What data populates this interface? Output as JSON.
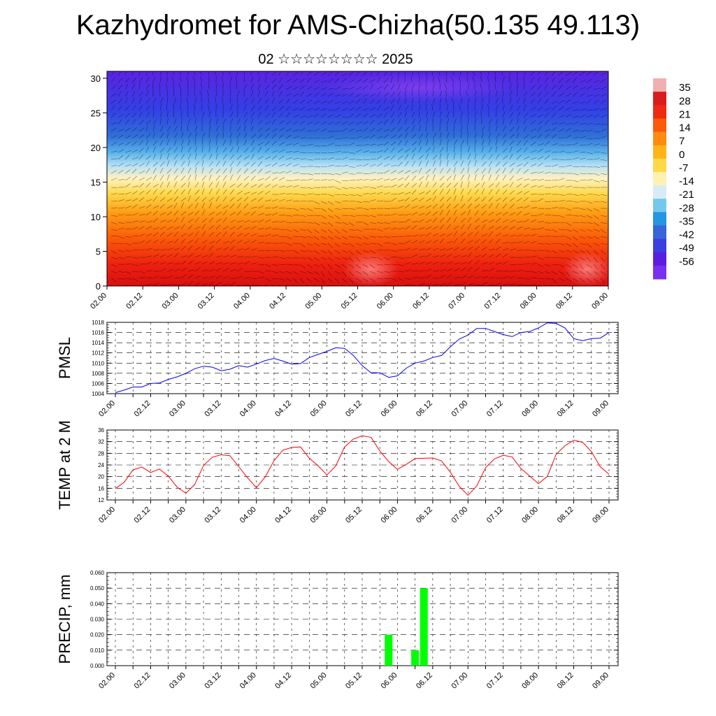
{
  "title": "Kazhydromet for AMS-Chizha(50.135 49.113)",
  "subtitle": "02 ☆☆☆☆☆☆☆☆ 2025",
  "time_ticks": [
    "02.00",
    "02.12",
    "03.00",
    "03.12",
    "04.00",
    "04.12",
    "05.00",
    "05.12",
    "06.00",
    "06.12",
    "07.00",
    "07.12",
    "08.00",
    "08.12",
    "09.00"
  ],
  "colorbar": {
    "labels": [
      "35",
      "28",
      "21",
      "14",
      "7",
      "0",
      "-7",
      "-14",
      "-21",
      "-28",
      "-35",
      "-42",
      "-49",
      "-56"
    ],
    "colors": [
      "#f0b0b0",
      "#d91c1c",
      "#ee2a10",
      "#fb5a08",
      "#ff8a10",
      "#ffb418",
      "#ffd84a",
      "#fff2b0",
      "#d8ecf8",
      "#74c8ee",
      "#2496e2",
      "#3a64d8",
      "#3a40e0",
      "#5a1ee0",
      "#7a30f0"
    ]
  },
  "chart_data": [
    {
      "type": "heatmap",
      "name": "cross-section",
      "x": [
        "02.00",
        "02.12",
        "03.00",
        "03.12",
        "04.00",
        "04.12",
        "05.00",
        "05.12",
        "06.00",
        "06.12",
        "07.00",
        "07.12",
        "08.00",
        "08.12",
        "09.00"
      ],
      "yticks": [
        "0",
        "5",
        "10",
        "15",
        "20",
        "25",
        "30"
      ],
      "ylim": [
        0,
        31
      ],
      "value_range": [
        -56,
        35
      ],
      "note": "temperature shading with wind barbs"
    },
    {
      "type": "line",
      "ylabel": "PMSL",
      "yticks": [
        "1004",
        "1006",
        "1008",
        "1010",
        "1012",
        "1014",
        "1016",
        "1018"
      ],
      "ylim": [
        1004,
        1018
      ],
      "color": "#0000ff",
      "x": [
        "02.00",
        "02.03",
        "02.06",
        "02.09",
        "02.12",
        "02.15",
        "02.18",
        "02.21",
        "03.00",
        "03.03",
        "03.06",
        "03.09",
        "03.12",
        "03.15",
        "03.18",
        "03.21",
        "04.00",
        "04.03",
        "04.06",
        "04.09",
        "04.12",
        "04.15",
        "04.18",
        "04.21",
        "05.00",
        "05.03",
        "05.06",
        "05.09",
        "05.12",
        "05.15",
        "05.18",
        "05.21",
        "06.00",
        "06.03",
        "06.06",
        "06.09",
        "06.12",
        "06.15",
        "06.18",
        "06.21",
        "07.00",
        "07.03",
        "07.06",
        "07.09",
        "07.12",
        "07.15",
        "07.18",
        "07.21",
        "08.00",
        "08.03",
        "08.06",
        "08.09",
        "08.12",
        "08.15",
        "08.18",
        "08.21",
        "09.00"
      ],
      "values": [
        1004.2,
        1004.7,
        1005.3,
        1005.3,
        1006.0,
        1006.1,
        1006.8,
        1007.3,
        1008.0,
        1008.9,
        1009.4,
        1009.2,
        1008.5,
        1008.8,
        1009.5,
        1009.2,
        1009.8,
        1010.5,
        1010.9,
        1010.4,
        1009.8,
        1009.9,
        1011.1,
        1011.7,
        1012.3,
        1013.0,
        1012.9,
        1011.5,
        1009.5,
        1008.1,
        1008.1,
        1007.2,
        1007.5,
        1009.0,
        1010.0,
        1010.4,
        1011.1,
        1011.5,
        1013.2,
        1014.7,
        1015.5,
        1016.8,
        1016.8,
        1016.2,
        1015.6,
        1015.2,
        1016.0,
        1016.2,
        1016.9,
        1017.9,
        1017.8,
        1016.9,
        1014.8,
        1014.4,
        1014.8,
        1014.9,
        1016.0
      ]
    },
    {
      "type": "line",
      "ylabel": "TEMP at 2 M",
      "yticks": [
        "12",
        "16",
        "20",
        "24",
        "28",
        "32",
        "36"
      ],
      "ylim": [
        12,
        36
      ],
      "color": "#ff0000",
      "x": [
        "02.00",
        "02.03",
        "02.06",
        "02.09",
        "02.12",
        "02.15",
        "02.18",
        "02.21",
        "03.00",
        "03.03",
        "03.06",
        "03.09",
        "03.12",
        "03.15",
        "03.18",
        "03.21",
        "04.00",
        "04.03",
        "04.06",
        "04.09",
        "04.12",
        "04.15",
        "04.18",
        "04.21",
        "05.00",
        "05.03",
        "05.06",
        "05.09",
        "05.12",
        "05.15",
        "05.18",
        "05.21",
        "06.00",
        "06.03",
        "06.06",
        "06.09",
        "06.12",
        "06.15",
        "06.18",
        "06.21",
        "07.00",
        "07.03",
        "07.06",
        "07.09",
        "07.12",
        "07.15",
        "07.18",
        "07.21",
        "08.00",
        "08.03",
        "08.06",
        "08.09",
        "08.12",
        "08.15",
        "08.18",
        "08.21",
        "09.00"
      ],
      "values": [
        15.9,
        18.1,
        22.3,
        23.3,
        21.4,
        22.6,
        20.2,
        16.4,
        14.3,
        17.3,
        23.8,
        26.7,
        27.5,
        27.2,
        23.4,
        19.6,
        16.2,
        19.9,
        25.5,
        29.1,
        30.0,
        30.2,
        26.3,
        23.7,
        20.6,
        23.7,
        30.2,
        32.9,
        34.0,
        33.5,
        28.8,
        25.2,
        22.5,
        24.2,
        26.2,
        26.3,
        26.4,
        25.4,
        21.5,
        16.7,
        13.6,
        16.8,
        23.1,
        26.1,
        27.3,
        26.8,
        22.8,
        20.2,
        17.6,
        20.1,
        27.7,
        30.6,
        32.5,
        31.8,
        28.6,
        23.4,
        20.8
      ]
    },
    {
      "type": "bar",
      "ylabel": "PRECIP, mm",
      "yticks": [
        "0.000",
        "0.010",
        "0.020",
        "0.030",
        "0.040",
        "0.050",
        "0.060"
      ],
      "ylim": [
        0,
        0.06
      ],
      "color": "#00ff00",
      "bars": [
        {
          "time": "05.21",
          "value": 0.02
        },
        {
          "time": "06.06",
          "value": 0.01
        },
        {
          "time": "06.09",
          "value": 0.05
        }
      ]
    }
  ]
}
